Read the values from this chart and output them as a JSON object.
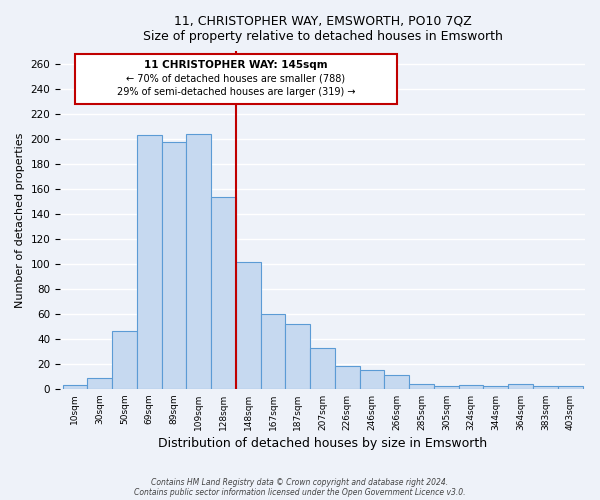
{
  "title": "11, CHRISTOPHER WAY, EMSWORTH, PO10 7QZ",
  "subtitle": "Size of property relative to detached houses in Emsworth",
  "xlabel": "Distribution of detached houses by size in Emsworth",
  "ylabel": "Number of detached properties",
  "bar_labels": [
    "10sqm",
    "30sqm",
    "50sqm",
    "69sqm",
    "89sqm",
    "109sqm",
    "128sqm",
    "148sqm",
    "167sqm",
    "187sqm",
    "207sqm",
    "226sqm",
    "246sqm",
    "266sqm",
    "285sqm",
    "305sqm",
    "324sqm",
    "344sqm",
    "364sqm",
    "383sqm",
    "403sqm"
  ],
  "bar_values": [
    3,
    9,
    46,
    203,
    197,
    204,
    153,
    101,
    60,
    52,
    33,
    18,
    15,
    11,
    4,
    2,
    3,
    2,
    4,
    2,
    2
  ],
  "bar_color": "#c6d9f0",
  "bar_edge_color": "#5b9bd5",
  "ylim": [
    0,
    270
  ],
  "yticks": [
    0,
    20,
    40,
    60,
    80,
    100,
    120,
    140,
    160,
    180,
    200,
    220,
    240,
    260
  ],
  "marker_label": "11 CHRISTOPHER WAY: 145sqm",
  "annotation_line1": "← 70% of detached houses are smaller (788)",
  "annotation_line2": "29% of semi-detached houses are larger (319) →",
  "marker_color": "#c00000",
  "box_color": "#c00000",
  "footer1": "Contains HM Land Registry data © Crown copyright and database right 2024.",
  "footer2": "Contains public sector information licensed under the Open Government Licence v3.0.",
  "bg_color": "#eef2f9",
  "grid_color": "#ffffff",
  "n_bars": 21,
  "marker_bin_index": 7
}
